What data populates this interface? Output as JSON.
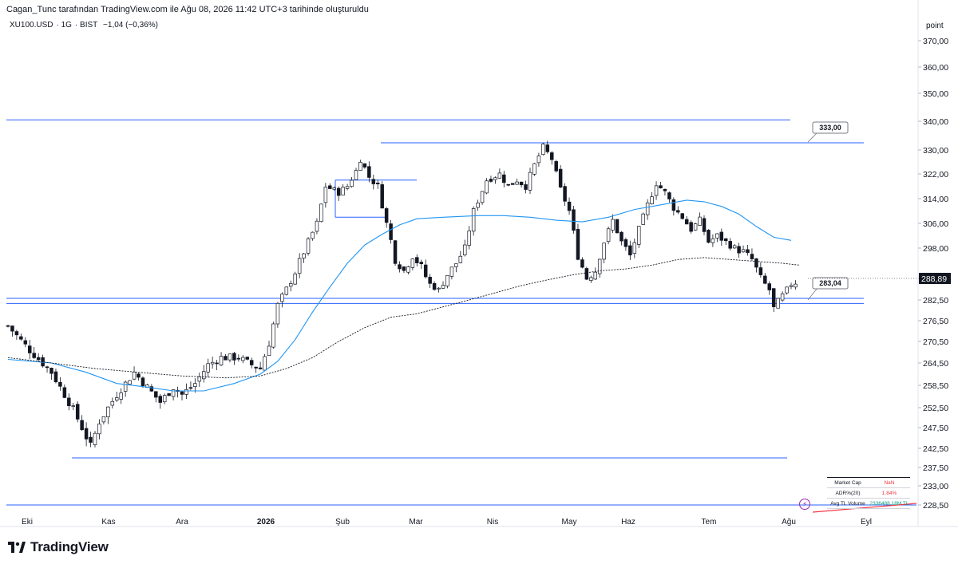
{
  "header": {
    "caption": "Cagan_Tunc tarafından TradingView.com ile Ağu 08, 2026 11:42 UTC+3 tarihinde oluşturuldu",
    "symbol": "XU100.USD",
    "interval": "1G",
    "exchange": "BIST",
    "change": "−1,04 (−0,36%)"
  },
  "branding": {
    "name": "TradingView"
  },
  "stats_table": {
    "rows": [
      {
        "label": "Market Cap",
        "value": "NaN",
        "color": "#f23645"
      },
      {
        "label": "ADR%(20)",
        "value": "1.84%",
        "color": "#f23645"
      },
      {
        "label": "Avg TL Volume",
        "value": "2336488.18M TL",
        "color": "#089981"
      }
    ]
  },
  "colors": {
    "line": "#2962ff",
    "ma": "#2196f3",
    "candle_up": "#ffffff",
    "candle_down": "#131722",
    "grid": "#e0e3eb",
    "indicator": "#9c27b0",
    "trend": "#f23645"
  },
  "chart_data": {
    "type": "candlestick",
    "axis_unit": "point",
    "y_ticks": [
      "370,00",
      "360,00",
      "350,00",
      "340,00",
      "330,00",
      "322,00",
      "314,00",
      "306,00",
      "298,00",
      "290,00",
      "282,50",
      "276,50",
      "270,50",
      "264,50",
      "258,50",
      "252,50",
      "247,50",
      "242,50",
      "237,50",
      "233,00",
      "228,50"
    ],
    "x_ticks": [
      "Eki",
      "Kas",
      "Ara",
      "2026",
      "Şub",
      "Mar",
      "Nis",
      "May",
      "Haz",
      "Tem",
      "Ağu",
      "Eyl"
    ],
    "last_price": "288,89",
    "levels": [
      {
        "price": 340.5,
        "note": "resistance"
      },
      {
        "price": 332.5,
        "note": "resistance"
      },
      {
        "price": 283.04,
        "note": "support"
      },
      {
        "price": 281.5,
        "note": "support"
      },
      {
        "price": 240.0,
        "note": "support"
      },
      {
        "price": 228.5,
        "note": "base"
      }
    ],
    "labels": [
      {
        "text": "333,00",
        "price": 333.0
      },
      {
        "text": "283,04",
        "price": 283.04
      }
    ],
    "close_path": [
      [
        0,
        275
      ],
      [
        5,
        268
      ],
      [
        10,
        262
      ],
      [
        15,
        252
      ],
      [
        19,
        243
      ],
      [
        21,
        249
      ],
      [
        25,
        256
      ],
      [
        29,
        262
      ],
      [
        32,
        258
      ],
      [
        35,
        254
      ],
      [
        38,
        258
      ],
      [
        40,
        256
      ],
      [
        43,
        259
      ],
      [
        46,
        264
      ],
      [
        49,
        266
      ],
      [
        53,
        266
      ],
      [
        56,
        264
      ],
      [
        58,
        263
      ],
      [
        60,
        270
      ],
      [
        62,
        281
      ],
      [
        65,
        289
      ],
      [
        68,
        297
      ],
      [
        71,
        306
      ],
      [
        73,
        318
      ],
      [
        76,
        316
      ],
      [
        78,
        318
      ],
      [
        80,
        323
      ],
      [
        81,
        327
      ],
      [
        83,
        321
      ],
      [
        85,
        318
      ],
      [
        87,
        306
      ],
      [
        89,
        295
      ],
      [
        91,
        292
      ],
      [
        93,
        296
      ],
      [
        95,
        293
      ],
      [
        97,
        288
      ],
      [
        99,
        286
      ],
      [
        101,
        291
      ],
      [
        103,
        294
      ],
      [
        105,
        298
      ],
      [
        107,
        310
      ],
      [
        110,
        320
      ],
      [
        113,
        322
      ],
      [
        115,
        318
      ],
      [
        117,
        320
      ],
      [
        119,
        318
      ],
      [
        121,
        325
      ],
      [
        123,
        331
      ],
      [
        125,
        327
      ],
      [
        127,
        317
      ],
      [
        129,
        310
      ],
      [
        131,
        296
      ],
      [
        133,
        290
      ],
      [
        135,
        292
      ],
      [
        137,
        300
      ],
      [
        139,
        307
      ],
      [
        141,
        300
      ],
      [
        143,
        296
      ],
      [
        145,
        304
      ],
      [
        147,
        312
      ],
      [
        149,
        319
      ],
      [
        151,
        316
      ],
      [
        153,
        311
      ],
      [
        155,
        308
      ],
      [
        157,
        304
      ],
      [
        159,
        307
      ],
      [
        161,
        300
      ],
      [
        163,
        302
      ],
      [
        165,
        300
      ],
      [
        167,
        298
      ],
      [
        169,
        297
      ],
      [
        171,
        295
      ],
      [
        173,
        290
      ],
      [
        175,
        286
      ],
      [
        176,
        280
      ],
      [
        178,
        284
      ],
      [
        180,
        288
      ],
      [
        182,
        289
      ]
    ],
    "ma50_path": [
      [
        0,
        265.5
      ],
      [
        10,
        264.5
      ],
      [
        18,
        262
      ],
      [
        25,
        259
      ],
      [
        32,
        258
      ],
      [
        38,
        257
      ],
      [
        45,
        257
      ],
      [
        52,
        259
      ],
      [
        58,
        261.5
      ],
      [
        62,
        265
      ],
      [
        66,
        271
      ],
      [
        70,
        279
      ],
      [
        74,
        287
      ],
      [
        78,
        294
      ],
      [
        82,
        299
      ],
      [
        86,
        302.5
      ],
      [
        90,
        305.5
      ],
      [
        94,
        307.5
      ],
      [
        100,
        308
      ],
      [
        108,
        308.5
      ],
      [
        114,
        308.5
      ],
      [
        120,
        308
      ],
      [
        126,
        307
      ],
      [
        132,
        306.5
      ],
      [
        138,
        308
      ],
      [
        144,
        310.5
      ],
      [
        150,
        312
      ],
      [
        156,
        313.5
      ],
      [
        160,
        313
      ],
      [
        164,
        311.5
      ],
      [
        168,
        309
      ],
      [
        172,
        305
      ],
      [
        176,
        301.5
      ],
      [
        180,
        300.5
      ]
    ],
    "ma200_path": [
      [
        0,
        266
      ],
      [
        10,
        264.5
      ],
      [
        20,
        263
      ],
      [
        30,
        262
      ],
      [
        40,
        261
      ],
      [
        50,
        260.5
      ],
      [
        58,
        261
      ],
      [
        64,
        263
      ],
      [
        70,
        266
      ],
      [
        76,
        270.5
      ],
      [
        82,
        274.5
      ],
      [
        88,
        277.5
      ],
      [
        94,
        278.5
      ],
      [
        100,
        280.5
      ],
      [
        106,
        282.5
      ],
      [
        112,
        285
      ],
      [
        118,
        287.5
      ],
      [
        124,
        289.5
      ],
      [
        130,
        291
      ],
      [
        136,
        292
      ],
      [
        142,
        292.5
      ],
      [
        148,
        293.5
      ],
      [
        154,
        295
      ],
      [
        160,
        295.5
      ],
      [
        166,
        295
      ],
      [
        172,
        294.5
      ],
      [
        178,
        294
      ],
      [
        182,
        293.5
      ]
    ]
  }
}
